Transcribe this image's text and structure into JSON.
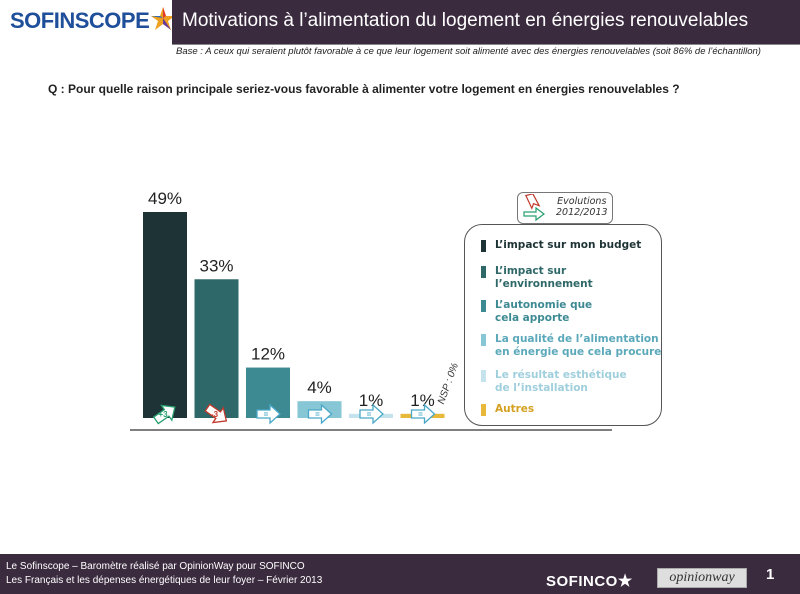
{
  "header": {
    "logo": "SOFINSCOPE",
    "title": "Motivations à l’alimentation du logement en énergies renouvelables",
    "base": "Base : A ceux qui seraient plutôt favorable à ce que leur logement soit alimenté avec des énergies renouvelables (soit 86% de l’échantillon)"
  },
  "question": "Q : Pour quelle raison principale seriez-vous favorable à alimenter votre logement en énergies renouvelables ?",
  "evolutions": {
    "line1": "Evolutions",
    "line2": "2012/2013"
  },
  "nsp": "NSP : 0%",
  "chart_data": {
    "type": "bar",
    "categories": [
      "L’impact sur mon budget",
      "L’impact sur l’environnement",
      "L’autonomie que cela apporte",
      "La qualité de l’alimentation en énergie que cela procure",
      "Le résultat esthétique de l’installation",
      "Autres"
    ],
    "values": [
      49,
      33,
      12,
      4,
      1,
      1
    ],
    "value_labels": [
      "49%",
      "33%",
      "12%",
      "4%",
      "1%",
      "1%"
    ],
    "evolutions": [
      "+3",
      "-3",
      "=",
      "=",
      "=",
      "="
    ],
    "colors": [
      "#1e3335",
      "#2f6868",
      "#3d8a93",
      "#86c6d5",
      "#c4e3ec",
      "#e8b83a"
    ],
    "ylim": [
      0,
      52
    ]
  },
  "legend": [
    {
      "label_line1": "L’impact sur mon budget",
      "label_line2": "",
      "color": "#1e3335",
      "text_color": "#1e3335"
    },
    {
      "label_line1": "L’impact sur",
      "label_line2": "l’environnement",
      "color": "#2f6868",
      "text_color": "#2f6868"
    },
    {
      "label_line1": "L’autonomie que",
      "label_line2": "cela apporte",
      "color": "#3d8a93",
      "text_color": "#3d8a93"
    },
    {
      "label_line1": "La qualité de l’alimentation",
      "label_line2": "en énergie que cela procure",
      "color": "#86c6d5",
      "text_color": "#5aa8ba"
    },
    {
      "label_line1": "Le résultat esthétique",
      "label_line2": "de l’installation",
      "color": "#c4e3ec",
      "text_color": "#9fcfdc"
    },
    {
      "label_line1": "Autres",
      "label_line2": "",
      "color": "#e8b83a",
      "text_color": "#d4a020"
    }
  ],
  "footer": {
    "line1": "Le Sofinscope – Baromètre réalisé par OpinionWay pour SOFINCO",
    "line2": "Les Français et les dépenses énergétiques de leur foyer – Février 2013",
    "brand": "SOFINCO",
    "partner": "opinionway",
    "page": "1"
  }
}
